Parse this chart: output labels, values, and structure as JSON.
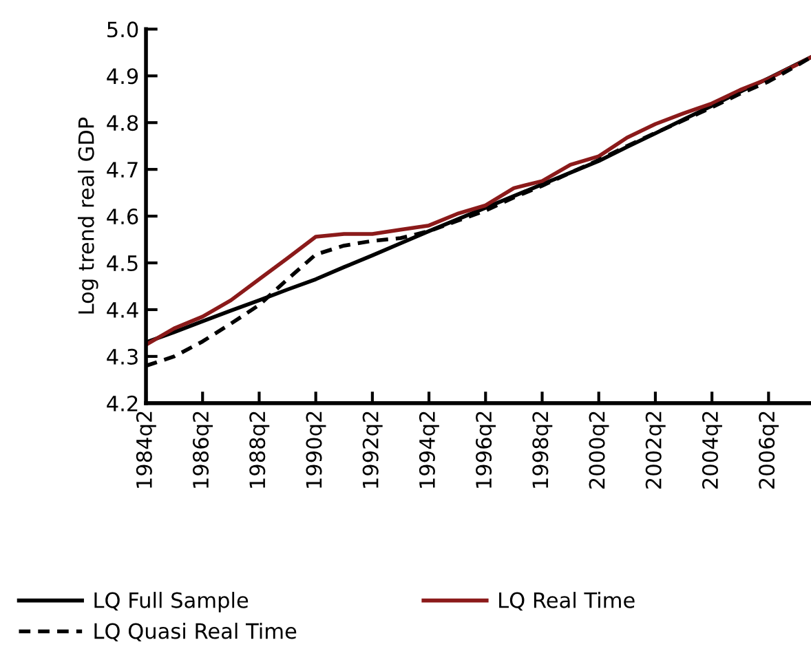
{
  "chart_data": {
    "type": "line",
    "ylabel": "Log trend real GDP",
    "xlim": [
      "1984-04",
      "2007-10"
    ],
    "ylim": [
      4.2,
      5.0
    ],
    "yticks": [
      4.2,
      4.3,
      4.4,
      4.5,
      4.6,
      4.7,
      4.8,
      4.9,
      {
        "value": 5.0,
        "label": "5.0"
      }
    ],
    "xticks": [
      {
        "value": "1984-04",
        "label": "1984q2"
      },
      {
        "value": "1986-04",
        "label": "1986q2"
      },
      {
        "value": "1988-04",
        "label": "1988q2"
      },
      {
        "value": "1990-04",
        "label": "1990q2"
      },
      {
        "value": "1992-04",
        "label": "1992q2"
      },
      {
        "value": "1994-04",
        "label": "1994q2"
      },
      {
        "value": "1996-04",
        "label": "1996q2"
      },
      {
        "value": "1998-04",
        "label": "1998q2"
      },
      {
        "value": "2000-04",
        "label": "2000q2"
      },
      {
        "value": "2002-04",
        "label": "2002q2"
      },
      {
        "value": "2004-04",
        "label": "2004q2"
      },
      {
        "value": "2006-04",
        "label": "2006q2"
      }
    ],
    "x": [
      "1984-04",
      "1985-04",
      "1986-04",
      "1987-04",
      "1988-04",
      "1989-04",
      "1990-04",
      "1991-04",
      "1992-04",
      "1993-04",
      "1994-04",
      "1995-04",
      "1996-04",
      "1997-04",
      "1998-04",
      "1999-04",
      "2000-04",
      "2001-04",
      "2002-04",
      "2003-04",
      "2004-04",
      "2005-04",
      "2006-04",
      "2007-04",
      "2007-10"
    ],
    "grid": false,
    "legend": "bottom",
    "marker": "none",
    "series": [
      {
        "name": "LQ Full Sample",
        "color": "#000000",
        "line_style": "solid",
        "values": [
          4.33,
          4.352,
          4.375,
          4.398,
          4.42,
          4.443,
          4.465,
          4.491,
          4.516,
          4.542,
          4.568,
          4.593,
          4.618,
          4.643,
          4.668,
          4.693,
          4.718,
          4.748,
          4.777,
          4.807,
          4.836,
          4.866,
          4.895,
          4.925,
          4.94
        ]
      },
      {
        "name": "LQ Real Time",
        "color": "#8b1a1a",
        "line_style": "solid",
        "values": [
          4.325,
          4.36,
          4.385,
          4.42,
          4.465,
          4.51,
          4.556,
          4.562,
          4.562,
          4.571,
          4.58,
          4.605,
          4.623,
          4.66,
          4.675,
          4.71,
          4.728,
          4.768,
          4.797,
          4.82,
          4.841,
          4.87,
          4.894,
          4.924,
          4.94
        ]
      },
      {
        "name": "LQ Quasi Real Time",
        "color": "#000000",
        "line_style": "dashed",
        "values": [
          4.28,
          4.3,
          4.332,
          4.37,
          4.41,
          4.465,
          4.518,
          4.537,
          4.547,
          4.553,
          4.568,
          4.59,
          4.612,
          4.64,
          4.665,
          4.693,
          4.72,
          4.75,
          4.778,
          4.805,
          4.833,
          4.862,
          4.888,
          4.922,
          4.94
        ]
      }
    ]
  }
}
